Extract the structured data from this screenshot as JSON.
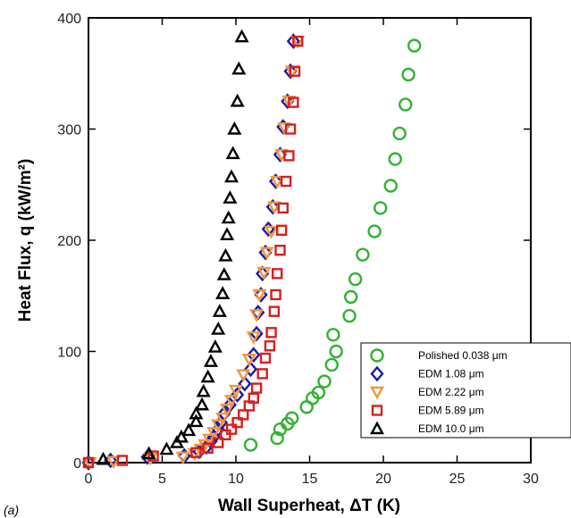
{
  "chart_data": {
    "type": "scatter",
    "panel_label": "(a)",
    "xlabel": "Wall Superheat, ΔT (K)",
    "ylabel": "Heat Flux, q (kW/m²)",
    "xlim": [
      0,
      30
    ],
    "ylim": [
      0,
      400
    ],
    "xticks": [
      "0",
      "5",
      "10",
      "15",
      "20",
      "25",
      "30"
    ],
    "yticks": [
      "0",
      "100",
      "200",
      "300",
      "400"
    ],
    "grid": false,
    "legend_position": "bottom-right",
    "series": [
      {
        "name": "Polished 0.038 μm",
        "marker": "circle",
        "color": "#33b233",
        "points": [
          [
            11.0,
            16
          ],
          [
            12.8,
            22
          ],
          [
            13.0,
            30
          ],
          [
            13.5,
            35
          ],
          [
            13.8,
            40
          ],
          [
            14.8,
            50
          ],
          [
            15.2,
            58
          ],
          [
            15.6,
            63
          ],
          [
            16.0,
            73
          ],
          [
            16.5,
            88
          ],
          [
            16.8,
            100
          ],
          [
            16.6,
            115
          ],
          [
            17.7,
            132
          ],
          [
            17.8,
            149
          ],
          [
            18.1,
            165
          ],
          [
            18.6,
            187
          ],
          [
            19.4,
            208
          ],
          [
            19.8,
            229
          ],
          [
            20.5,
            249
          ],
          [
            20.8,
            273
          ],
          [
            21.1,
            296
          ],
          [
            21.5,
            322
          ],
          [
            21.7,
            349
          ],
          [
            22.1,
            375
          ]
        ]
      },
      {
        "name": "EDM 1.08 μm",
        "marker": "diamond",
        "color": "#1a1aa6",
        "points": [
          [
            0,
            0
          ],
          [
            1.5,
            2
          ],
          [
            4.0,
            5
          ],
          [
            6.5,
            6
          ],
          [
            7.5,
            10
          ],
          [
            8.0,
            14
          ],
          [
            8.3,
            19
          ],
          [
            8.5,
            23
          ],
          [
            8.8,
            30
          ],
          [
            9.0,
            36
          ],
          [
            9.2,
            44
          ],
          [
            9.6,
            52
          ],
          [
            10.1,
            61
          ],
          [
            10.6,
            71
          ],
          [
            11.0,
            84
          ],
          [
            11.2,
            97
          ],
          [
            11.4,
            116
          ],
          [
            11.5,
            135
          ],
          [
            11.7,
            151
          ],
          [
            11.8,
            170
          ],
          [
            12.0,
            189
          ],
          [
            12.2,
            210
          ],
          [
            12.5,
            230
          ],
          [
            12.7,
            253
          ],
          [
            13.0,
            277
          ],
          [
            13.2,
            302
          ],
          [
            13.5,
            325
          ],
          [
            13.7,
            352
          ],
          [
            13.9,
            379
          ]
        ]
      },
      {
        "name": "EDM 2.22 μm",
        "marker": "triangle-down",
        "color": "#f29640",
        "points": [
          [
            0.1,
            0
          ],
          [
            1.7,
            1
          ],
          [
            4.2,
            4
          ],
          [
            6.4,
            5
          ],
          [
            7.2,
            8
          ],
          [
            7.6,
            12
          ],
          [
            7.9,
            16
          ],
          [
            8.2,
            21
          ],
          [
            8.5,
            27
          ],
          [
            8.8,
            34
          ],
          [
            9.1,
            40
          ],
          [
            9.4,
            48
          ],
          [
            9.7,
            56
          ],
          [
            10.0,
            65
          ],
          [
            10.5,
            79
          ],
          [
            10.9,
            93
          ],
          [
            11.2,
            113
          ],
          [
            11.4,
            133
          ],
          [
            11.6,
            151
          ],
          [
            11.9,
            171
          ],
          [
            12.1,
            189
          ],
          [
            12.4,
            208
          ],
          [
            12.6,
            230
          ],
          [
            12.8,
            253
          ],
          [
            13.1,
            277
          ],
          [
            13.3,
            301
          ],
          [
            13.6,
            325
          ],
          [
            13.8,
            352
          ],
          [
            14.2,
            379
          ]
        ]
      },
      {
        "name": "EDM 5.89 μm",
        "marker": "square",
        "color": "#d81e1e",
        "points": [
          [
            0,
            0
          ],
          [
            2.3,
            2
          ],
          [
            4.4,
            6
          ],
          [
            7.3,
            9
          ],
          [
            8.1,
            13
          ],
          [
            8.8,
            18
          ],
          [
            9.3,
            25
          ],
          [
            9.7,
            30
          ],
          [
            10.1,
            36
          ],
          [
            10.5,
            43
          ],
          [
            10.9,
            51
          ],
          [
            11.2,
            58
          ],
          [
            11.4,
            67
          ],
          [
            11.8,
            80
          ],
          [
            12.0,
            94
          ],
          [
            12.3,
            105
          ],
          [
            12.4,
            117
          ],
          [
            12.6,
            136
          ],
          [
            12.7,
            151
          ],
          [
            12.8,
            170
          ],
          [
            13.0,
            191
          ],
          [
            13.1,
            209
          ],
          [
            13.2,
            229
          ],
          [
            13.4,
            253
          ],
          [
            13.6,
            276
          ],
          [
            13.7,
            300
          ],
          [
            13.9,
            324
          ],
          [
            14.0,
            352
          ],
          [
            14.2,
            379
          ]
        ]
      },
      {
        "name": "EDM 10.0 μm",
        "marker": "triangle-up",
        "color": "#000000",
        "points": [
          [
            1.0,
            3
          ],
          [
            4.1,
            8
          ],
          [
            5.3,
            12
          ],
          [
            6.0,
            18
          ],
          [
            6.3,
            23
          ],
          [
            6.8,
            29
          ],
          [
            7.3,
            37
          ],
          [
            7.3,
            44
          ],
          [
            7.7,
            52
          ],
          [
            7.8,
            64
          ],
          [
            8.1,
            77
          ],
          [
            8.3,
            91
          ],
          [
            8.6,
            104
          ],
          [
            8.8,
            120
          ],
          [
            8.9,
            136
          ],
          [
            9.1,
            152
          ],
          [
            9.2,
            169
          ],
          [
            9.3,
            186
          ],
          [
            9.4,
            205
          ],
          [
            9.5,
            220
          ],
          [
            9.6,
            238
          ],
          [
            9.7,
            257
          ],
          [
            9.8,
            278
          ],
          [
            9.9,
            300
          ],
          [
            10.1,
            325
          ],
          [
            10.2,
            354
          ],
          [
            10.4,
            383
          ]
        ]
      }
    ]
  }
}
